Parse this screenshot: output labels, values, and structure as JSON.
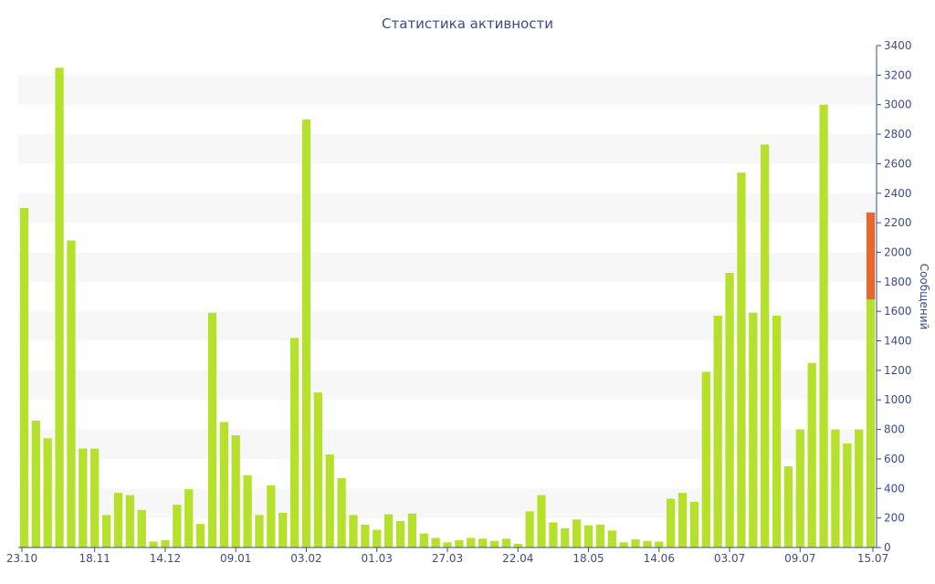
{
  "chart_data": {
    "type": "bar",
    "title": "Статистика активности",
    "xlabel": "",
    "ylabel": "Сообщений",
    "ylim": [
      0,
      3400
    ],
    "yticks": [
      0,
      200,
      400,
      600,
      800,
      1000,
      1200,
      1400,
      1600,
      1800,
      2000,
      2200,
      2400,
      2600,
      2800,
      3000,
      3200,
      3400
    ],
    "y_axis_side": "right",
    "grid": "alternating horizontal bands",
    "xtick_labels": [
      {
        "index": 0,
        "label": "23.10"
      },
      {
        "index": 6,
        "label": "18.11"
      },
      {
        "index": 12,
        "label": "14.12"
      },
      {
        "index": 18,
        "label": "09.01"
      },
      {
        "index": 24,
        "label": "03.02"
      },
      {
        "index": 30,
        "label": "01.03"
      },
      {
        "index": 36,
        "label": "27.03"
      },
      {
        "index": 42,
        "label": "22.04"
      },
      {
        "index": 48,
        "label": "18.05"
      },
      {
        "index": 54,
        "label": "14.06"
      },
      {
        "index": 60,
        "label": "03.07"
      },
      {
        "index": 66,
        "label": "09.07"
      },
      {
        "index": 72,
        "label": "15.07"
      }
    ],
    "series": [
      {
        "color": "#b5e02b",
        "values": [
          2300,
          860,
          740,
          3250,
          2080,
          670,
          670,
          220,
          370,
          355,
          255,
          40,
          50,
          290,
          395,
          160,
          1590,
          850,
          760,
          490,
          220,
          420,
          235,
          1420,
          2900,
          1050,
          630,
          470,
          220,
          155,
          120,
          225,
          180,
          230,
          95,
          65,
          35,
          50,
          65,
          60,
          45,
          60,
          25,
          245,
          355,
          170,
          130,
          190,
          150,
          155,
          115,
          35,
          55,
          45,
          40,
          330,
          370,
          310,
          1190,
          1570,
          1860,
          2540,
          1590,
          2730,
          1570,
          550,
          800,
          1250,
          3000,
          800,
          705,
          800,
          1680
        ]
      },
      {
        "color": "#e86630",
        "values": [
          0,
          0,
          0,
          0,
          0,
          0,
          0,
          0,
          0,
          0,
          0,
          0,
          0,
          0,
          0,
          0,
          0,
          0,
          0,
          0,
          0,
          0,
          0,
          0,
          0,
          0,
          0,
          0,
          0,
          0,
          0,
          0,
          0,
          0,
          0,
          0,
          0,
          0,
          0,
          0,
          0,
          0,
          0,
          0,
          0,
          0,
          0,
          0,
          0,
          0,
          0,
          0,
          0,
          0,
          0,
          0,
          0,
          0,
          0,
          0,
          0,
          0,
          0,
          0,
          0,
          0,
          0,
          0,
          0,
          0,
          0,
          0,
          590
        ]
      }
    ]
  },
  "colors": {
    "text": "#3b4b8c",
    "band": "#f7f7f7",
    "axis": "#3b4b8c"
  }
}
